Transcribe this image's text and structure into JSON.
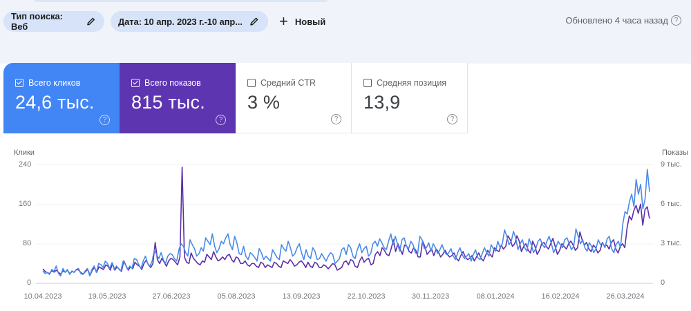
{
  "toolbar": {
    "chip_search_type": "Тип поиска: Веб",
    "chip_date": "Дата: 10 апр. 2023 г.-10 апр...",
    "new_label": "Новый",
    "updated": "Обновлено 4 часа назад"
  },
  "cards": [
    {
      "label": "Всего кликов",
      "value": "24,6 тыс.",
      "checked": true,
      "color": "#4285f4"
    },
    {
      "label": "Всего показов",
      "value": "815 тыс.",
      "checked": true,
      "color": "#5e35b1"
    },
    {
      "label": "Средний CTR",
      "value": "3 %",
      "checked": false
    },
    {
      "label": "Средняя позиция",
      "value": "13,9",
      "checked": false
    }
  ],
  "colors": {
    "clicks": "#4285f4",
    "impressions": "#5e35b1",
    "clicks_line": "#4a8ae8",
    "impressions_line": "#5b2fa8"
  },
  "chart_data": {
    "type": "line",
    "title": "",
    "xlabel": "",
    "ylabel": "Клики",
    "ylabel_right": "Показы",
    "y_ticks_left": [
      "0",
      "80",
      "160",
      "240"
    ],
    "y_ticks_right": [
      "0",
      "3 тыс.",
      "6 тыс.",
      "9 тыс."
    ],
    "ylim_left": [
      0,
      240
    ],
    "ylim_right": [
      0,
      9000
    ],
    "x_ticks": [
      "10.04.2023",
      "19.05.2023",
      "27.06.2023",
      "05.08.2023",
      "13.09.2023",
      "22.10.2023",
      "30.11.2023",
      "08.01.2024",
      "16.02.2024",
      "26.03.2024"
    ],
    "grid": true,
    "legend": "none (metric cards act as legend)",
    "series": [
      {
        "name": "Клики",
        "axis": "left",
        "color": "#4285f4",
        "values": [
          25,
          20,
          22,
          18,
          28,
          24,
          35,
          20,
          15,
          30,
          22,
          28,
          18,
          25,
          22,
          28,
          30,
          20,
          18,
          25,
          30,
          15,
          28,
          35,
          22,
          40,
          38,
          32,
          45,
          40,
          30,
          42,
          28,
          35,
          30,
          25,
          45,
          38,
          28,
          35,
          30,
          50,
          48,
          38,
          30,
          45,
          55,
          40,
          35,
          45,
          68,
          58,
          50,
          62,
          48,
          40,
          55,
          60,
          58,
          50,
          45,
          68,
          80,
          75,
          62,
          55,
          88,
          78,
          70,
          55,
          60,
          72,
          65,
          92,
          85,
          78,
          100,
          75,
          62,
          70,
          85,
          80,
          92,
          100,
          78,
          68,
          95,
          82,
          60,
          58,
          75,
          55,
          48,
          62,
          58,
          52,
          45,
          70,
          62,
          48,
          55,
          50,
          45,
          68,
          60,
          52,
          48,
          78,
          70,
          65,
          85,
          72,
          55,
          60,
          72,
          80,
          62,
          48,
          68,
          55,
          50,
          72,
          65,
          48,
          50,
          60,
          52,
          45,
          55,
          62,
          58,
          40,
          45,
          50,
          68,
          72,
          58,
          78,
          72,
          55,
          50,
          68,
          80,
          62,
          70,
          75,
          55,
          60,
          80,
          85,
          75,
          90,
          82,
          72,
          68,
          85,
          100,
          78,
          95,
          80,
          65,
          88,
          92,
          75,
          70,
          85,
          78,
          62,
          58,
          95,
          88,
          70,
          72,
          82,
          65,
          80,
          72,
          60,
          68,
          78,
          65,
          58,
          62,
          70,
          55,
          48,
          62,
          72,
          58,
          50,
          55,
          60,
          45,
          58,
          68,
          52,
          48,
          60,
          72,
          62,
          55,
          78,
          70,
          65,
          85,
          72,
          80,
          108,
          95,
          78,
          85,
          105,
          92,
          68,
          80,
          88,
          72,
          65,
          90,
          78,
          62,
          70,
          85,
          90,
          78,
          72,
          85,
          95,
          80,
          62,
          72,
          85,
          78,
          72,
          88,
          92,
          80,
          68,
          75,
          110,
          95,
          80,
          88,
          72,
          65,
          82,
          75,
          62,
          70,
          88,
          78,
          82,
          72,
          90,
          95,
          70,
          62,
          78,
          85,
          72,
          120,
          145,
          140,
          165,
          180,
          155,
          210,
          180,
          200,
          150,
          170,
          230,
          185
        ]
      },
      {
        "name": "Показы",
        "axis": "right",
        "color": "#5e35b1",
        "values": [
          1100,
          900,
          800,
          750,
          950,
          850,
          1000,
          820,
          700,
          950,
          850,
          1000,
          720,
          900,
          850,
          1050,
          1000,
          800,
          700,
          900,
          1050,
          600,
          1000,
          1200,
          850,
          1250,
          1150,
          1050,
          1400,
          1300,
          1000,
          1500,
          1000,
          1250,
          1050,
          900,
          1700,
          1350,
          1000,
          1250,
          1100,
          1600,
          1400,
          1300,
          1050,
          1500,
          1750,
          1400,
          1200,
          1500,
          3100,
          1800,
          1500,
          1900,
          1600,
          1300,
          1700,
          1900,
          1800,
          1600,
          1400,
          2000,
          8800,
          2000,
          1600,
          1500,
          2300,
          1900,
          1700,
          1500,
          1400,
          1700,
          1600,
          2200,
          2000,
          1800,
          2400,
          2000,
          1700,
          1800,
          2000,
          1800,
          2100,
          2200,
          1800,
          1600,
          2000,
          1900,
          1500,
          1500,
          1700,
          1400,
          1300,
          1500,
          1500,
          1300,
          1200,
          1600,
          1500,
          1200,
          1400,
          1300,
          1200,
          1600,
          1500,
          1300,
          1200,
          1700,
          1600,
          1500,
          1800,
          1600,
          1300,
          1400,
          1600,
          1700,
          1500,
          1200,
          1600,
          1300,
          1200,
          1600,
          1500,
          1200,
          1200,
          1400,
          1300,
          1100,
          1300,
          1500,
          1400,
          1000,
          1100,
          1200,
          1600,
          1700,
          1400,
          1800,
          1700,
          1300,
          1200,
          1700,
          2000,
          1600,
          1800,
          1900,
          1400,
          1500,
          2200,
          2400,
          2100,
          2700,
          2500,
          2200,
          2100,
          2600,
          3300,
          2400,
          3000,
          2600,
          2200,
          2900,
          2800,
          2400,
          2300,
          2700,
          2500,
          2000,
          2000,
          3200,
          2800,
          2200,
          2400,
          2600,
          2100,
          2600,
          2400,
          2000,
          2200,
          2500,
          2200,
          2000,
          2100,
          2300,
          1900,
          1700,
          2100,
          2400,
          2000,
          1800,
          1900,
          2100,
          1700,
          2000,
          2300,
          1900,
          1700,
          2100,
          2500,
          2200,
          2000,
          2700,
          2500,
          2400,
          2900,
          2600,
          2800,
          3600,
          3300,
          2800,
          3000,
          3600,
          3200,
          2400,
          2800,
          3000,
          2500,
          2300,
          3200,
          2800,
          2200,
          2500,
          3000,
          3100,
          2800,
          2600,
          3000,
          3400,
          2800,
          2200,
          2500,
          3000,
          2800,
          2600,
          3000,
          3200,
          2900,
          2500,
          2700,
          3900,
          3300,
          2900,
          3100,
          2600,
          2400,
          2900,
          2700,
          2300,
          2500,
          3100,
          2800,
          2900,
          2600,
          3100,
          3300,
          2600,
          2300,
          2800,
          3000,
          2700,
          4200,
          5100,
          4800,
          5500,
          5900,
          5300,
          6000,
          4400,
          5600,
          5800,
          4900
        ]
      }
    ]
  }
}
